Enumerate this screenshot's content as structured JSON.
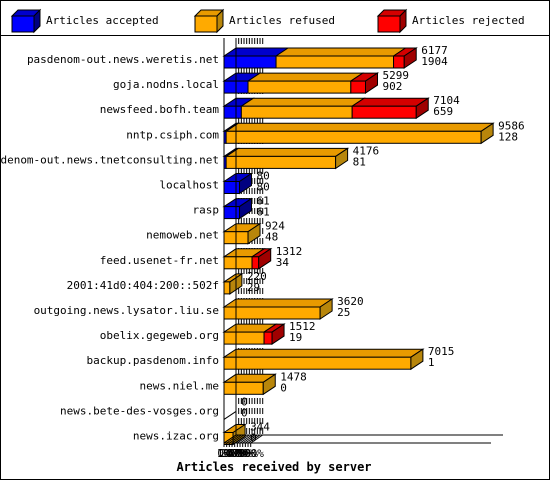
{
  "chart_data": {
    "type": "bar",
    "orientation": "horizontal",
    "stacked": true,
    "title": "",
    "xlabel": "Articles received by server",
    "ylabel": "",
    "xlim": [
      0,
      100
    ],
    "x_tick_labels": [
      "0%",
      "10%",
      "20%",
      "30%",
      "40%",
      "50%",
      "60%",
      "70%",
      "80%",
      "90%",
      "100%"
    ],
    "legend_position": "top",
    "categories": [
      "pasdenom-out.news.weretis.net",
      "goja.nodns.local",
      "newsfeed.bofh.team",
      "nntp.csiph.com",
      "pasdenom-out.news.tnetconsulting.net",
      "localhost",
      "rasp",
      "nemoweb.net",
      "feed.usenet-fr.net",
      "2001:41d0:404:200::502f",
      "outgoing.news.lysator.liu.se",
      "obelix.gegeweb.org",
      "backup.pasdenom.info",
      "news.niel.me",
      "news.bete-des-vosges.org",
      "news.izac.org"
    ],
    "series": [
      {
        "name": "Articles accepted",
        "color": "#0000ff",
        "values_percent": [
          19.5,
          9.0,
          6.5,
          0.8,
          0.8,
          5.8,
          5.8,
          0,
          0,
          0,
          0,
          0,
          0,
          0,
          0,
          0
        ]
      },
      {
        "name": "Articles refused",
        "color": "#ffaa00",
        "values_percent": [
          44.0,
          38.5,
          41.5,
          95.5,
          41.0,
          0,
          0,
          9.0,
          10.5,
          2.2,
          36.0,
          15.0,
          70.0,
          14.7,
          0,
          3.4
        ]
      },
      {
        "name": "Articles rejected",
        "color": "#ff0000",
        "values_percent": [
          4.0,
          5.5,
          24.0,
          0,
          0,
          0,
          0,
          0,
          2.5,
          0,
          0,
          3.0,
          0,
          0,
          0,
          0
        ]
      }
    ],
    "labels_upper": [
      "6177",
      "5299",
      "7104",
      "9586",
      "4176",
      "80",
      "61",
      "924",
      "1312",
      "220",
      "3620",
      "1512",
      "7015",
      "1478",
      "0",
      "344"
    ],
    "labels_lower": [
      "1904",
      "902",
      "659",
      "128",
      "81",
      "80",
      "61",
      "48",
      "34",
      "29",
      "25",
      "19",
      "1",
      "0",
      "0",
      "0"
    ]
  }
}
